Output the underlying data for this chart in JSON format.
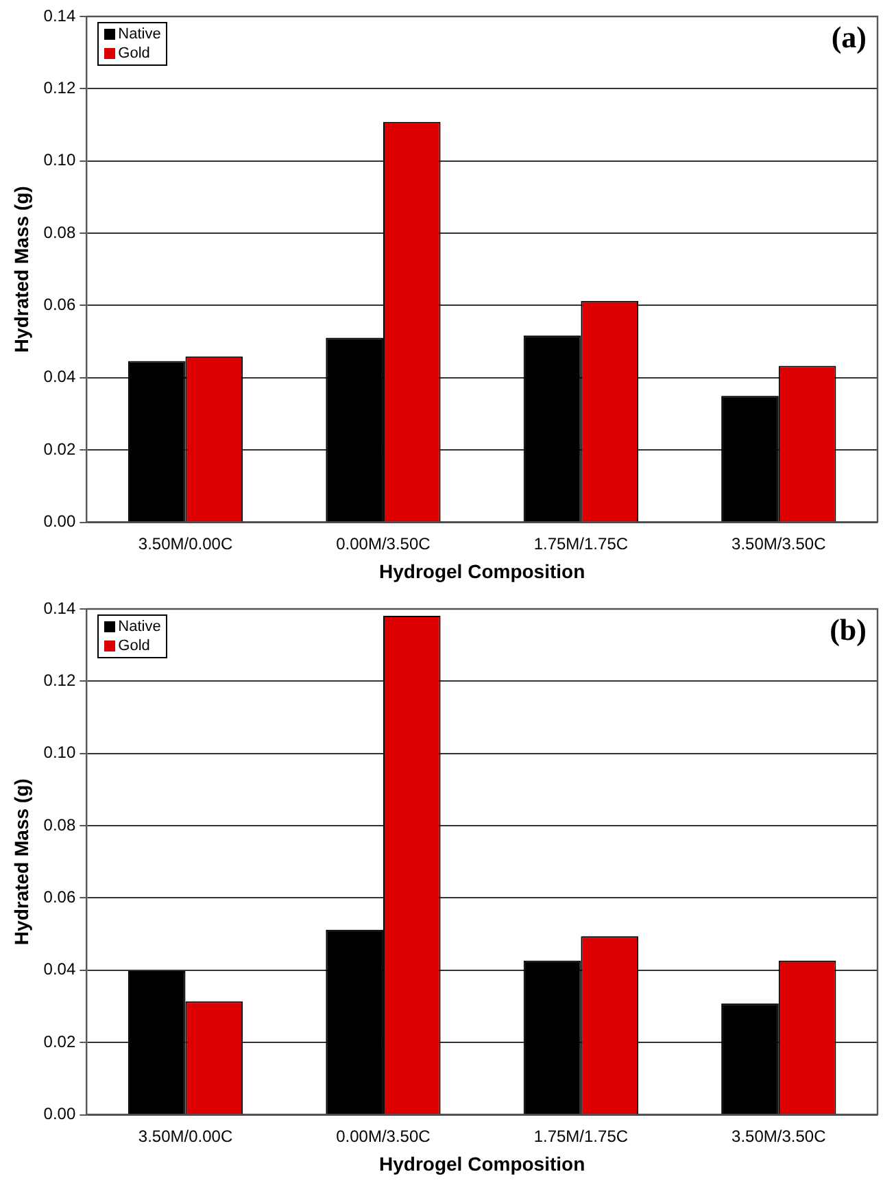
{
  "chart_data": [
    {
      "type": "bar",
      "xlabel": "Hydrogel Composition",
      "ylabel": "Hydrated Mass (g)",
      "annotations": [
        "(a)"
      ],
      "categories": [
        "3.50M/0.00C",
        "0.00M/3.50C",
        "1.75M/1.75C",
        "3.50M/3.50C"
      ],
      "series": [
        {
          "name": "Native",
          "color": "#000000",
          "values": [
            0.0446,
            0.0511,
            0.0517,
            0.035
          ]
        },
        {
          "name": "Gold",
          "color": "#dd0000",
          "values": [
            0.0459,
            0.1108,
            0.0613,
            0.0433
          ]
        }
      ],
      "ylim": [
        0,
        0.14
      ],
      "yticks": [
        {
          "value": 0,
          "label": "0.00"
        },
        {
          "value": 0.02,
          "label": "0.02"
        },
        {
          "value": 0.04,
          "label": "0.04"
        },
        {
          "value": 0.06,
          "label": "0.06"
        },
        {
          "value": 0.08,
          "label": "0.08"
        },
        {
          "value": 0.1,
          "label": "0.10"
        },
        {
          "value": 0.12,
          "label": "0.12"
        },
        {
          "value": 0.14,
          "label": "0.14"
        }
      ],
      "grid": "y",
      "legend": "top left"
    },
    {
      "type": "bar",
      "xlabel": "Hydrogel Composition",
      "ylabel": "Hydrated Mass (g)",
      "annotations": [
        "(b)"
      ],
      "categories": [
        "3.50M/0.00C",
        "0.00M/3.50C",
        "1.75M/1.75C",
        "3.50M/3.50C"
      ],
      "series": [
        {
          "name": "Native",
          "color": "#000000",
          "values": [
            0.0398,
            0.0512,
            0.0427,
            0.0308
          ]
        },
        {
          "name": "Gold",
          "color": "#dd0000",
          "values": [
            0.0314,
            0.1381,
            0.0494,
            0.0427
          ]
        }
      ],
      "ylim": [
        0,
        0.14
      ],
      "yticks": [
        {
          "value": 0,
          "label": "0.00"
        },
        {
          "value": 0.02,
          "label": "0.02"
        },
        {
          "value": 0.04,
          "label": "0.04"
        },
        {
          "value": 0.06,
          "label": "0.06"
        },
        {
          "value": 0.08,
          "label": "0.08"
        },
        {
          "value": 0.1,
          "label": "0.10"
        },
        {
          "value": 0.12,
          "label": "0.12"
        },
        {
          "value": 0.14,
          "label": "0.14"
        }
      ],
      "grid": "y",
      "legend": "top left"
    }
  ]
}
